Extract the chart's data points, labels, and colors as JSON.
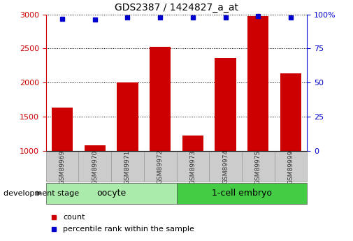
{
  "title": "GDS2387 / 1424827_a_at",
  "samples": [
    "GSM89969",
    "GSM89970",
    "GSM89971",
    "GSM89972",
    "GSM89973",
    "GSM89974",
    "GSM89975",
    "GSM89999"
  ],
  "counts": [
    1630,
    1080,
    2000,
    2530,
    1220,
    2360,
    2980,
    2140
  ],
  "percentiles": [
    97,
    96,
    98,
    98,
    98,
    98,
    99,
    98
  ],
  "ylim_left": [
    1000,
    3000
  ],
  "ylim_right": [
    0,
    100
  ],
  "yticks_left": [
    1000,
    1500,
    2000,
    2500,
    3000
  ],
  "yticks_right": [
    0,
    25,
    50,
    75,
    100
  ],
  "bar_color": "#cc0000",
  "dot_color": "#0000cc",
  "bar_width": 0.65,
  "oocyte_color": "#aaeaaa",
  "embryo_color": "#44cc44",
  "groups": [
    {
      "label": "oocyte",
      "n": 4,
      "color": "#aaeaaa"
    },
    {
      "label": "1-cell embryo",
      "n": 4,
      "color": "#44cc44"
    }
  ],
  "legend_count_label": "count",
  "legend_pct_label": "percentile rank within the sample",
  "dev_stage_label": "development stage",
  "xlabel_color": "#cc0000",
  "ylabel_right_color": "#0000cc",
  "grid_color": "#000000",
  "background_color": "#ffffff",
  "tick_area_color": "#cccccc",
  "tick_label_color": "#333333"
}
